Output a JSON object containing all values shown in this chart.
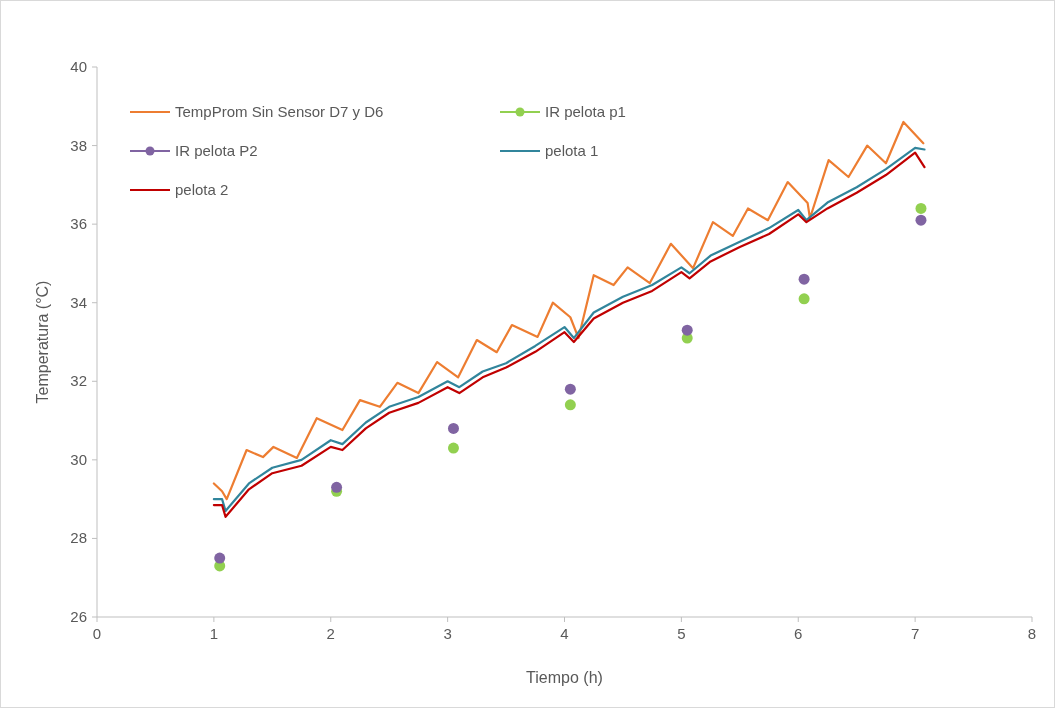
{
  "chart_data": {
    "type": "line",
    "xlabel": "Tiempo (h)",
    "ylabel": "Temperatura (°C)",
    "xlim": [
      0,
      8
    ],
    "xticks": [
      0,
      1,
      2,
      3,
      4,
      5,
      6,
      7,
      8
    ],
    "ylim": [
      26,
      40
    ],
    "yticks": [
      26,
      28,
      30,
      32,
      34,
      36,
      38,
      40
    ],
    "grid": false,
    "legend": "top left",
    "series": [
      {
        "name": "TempProm Sin Sensor D7 y D6",
        "color": "#ed7d31",
        "x": [
          1.0,
          1.07,
          1.11,
          1.28,
          1.42,
          1.51,
          1.71,
          1.88,
          2.1,
          2.25,
          2.42,
          2.57,
          2.75,
          2.91,
          3.09,
          3.25,
          3.42,
          3.55,
          3.77,
          3.9,
          4.05,
          4.12,
          4.25,
          4.42,
          4.54,
          4.73,
          4.91,
          5.1,
          5.27,
          5.44,
          5.57,
          5.74,
          5.91,
          6.08,
          6.1,
          6.26,
          6.43,
          6.59,
          6.75,
          6.9,
          7.07
        ],
        "values": [
          29.4,
          29.2,
          29.0,
          30.25,
          30.07,
          30.33,
          30.05,
          31.06,
          30.76,
          31.52,
          31.35,
          31.96,
          31.7,
          32.49,
          32.1,
          33.05,
          32.74,
          33.43,
          33.13,
          34.0,
          33.63,
          33.1,
          34.7,
          34.45,
          34.9,
          34.5,
          35.5,
          34.88,
          36.05,
          35.7,
          36.4,
          36.1,
          37.07,
          36.54,
          36.15,
          37.63,
          37.2,
          38.0,
          37.55,
          38.6,
          38.06
        ]
      },
      {
        "name": "IR pelota p1",
        "type": "scatter",
        "marker": "circle",
        "color": "#92d050",
        "x": [
          1.05,
          2.05,
          3.05,
          4.05,
          5.05,
          6.05,
          7.05
        ],
        "values": [
          27.3,
          29.2,
          30.3,
          31.4,
          33.1,
          34.1,
          36.4
        ]
      },
      {
        "name": "IR pelota P2",
        "type": "scatter",
        "marker": "circle",
        "color": "#8064a2",
        "x": [
          1.05,
          2.05,
          3.05,
          4.05,
          5.05,
          6.05,
          7.05
        ],
        "values": [
          27.5,
          29.3,
          30.8,
          31.8,
          33.3,
          34.6,
          36.1
        ]
      },
      {
        "name": "pelota 1",
        "color": "#31859c",
        "x": [
          1.0,
          1.07,
          1.1,
          1.3,
          1.5,
          1.75,
          2.0,
          2.1,
          2.3,
          2.5,
          2.75,
          3.0,
          3.1,
          3.3,
          3.5,
          3.75,
          4.0,
          4.08,
          4.25,
          4.5,
          4.75,
          5.0,
          5.07,
          5.25,
          5.5,
          5.75,
          6.0,
          6.07,
          6.25,
          6.5,
          6.75,
          7.0,
          7.08
        ],
        "values": [
          29.0,
          29.0,
          28.7,
          29.4,
          29.8,
          30.0,
          30.5,
          30.4,
          30.95,
          31.35,
          31.6,
          32.0,
          31.85,
          32.25,
          32.46,
          32.9,
          33.38,
          33.1,
          33.75,
          34.15,
          34.45,
          34.9,
          34.75,
          35.2,
          35.55,
          35.9,
          36.36,
          36.1,
          36.55,
          36.94,
          37.4,
          37.94,
          37.9
        ]
      },
      {
        "name": "pelota 2",
        "color": "#c00000",
        "x": [
          1.0,
          1.07,
          1.1,
          1.3,
          1.5,
          1.75,
          2.0,
          2.1,
          2.3,
          2.5,
          2.75,
          3.0,
          3.1,
          3.3,
          3.5,
          3.75,
          4.0,
          4.08,
          4.25,
          4.5,
          4.75,
          5.0,
          5.07,
          5.25,
          5.5,
          5.75,
          6.0,
          6.07,
          6.25,
          6.5,
          6.75,
          7.0,
          7.08
        ],
        "values": [
          28.85,
          28.85,
          28.55,
          29.25,
          29.66,
          29.85,
          30.33,
          30.25,
          30.8,
          31.2,
          31.45,
          31.85,
          31.7,
          32.1,
          32.35,
          32.75,
          33.25,
          33.0,
          33.6,
          34.0,
          34.3,
          34.78,
          34.62,
          35.05,
          35.42,
          35.75,
          36.25,
          36.05,
          36.4,
          36.8,
          37.25,
          37.82,
          37.45
        ]
      }
    ]
  }
}
